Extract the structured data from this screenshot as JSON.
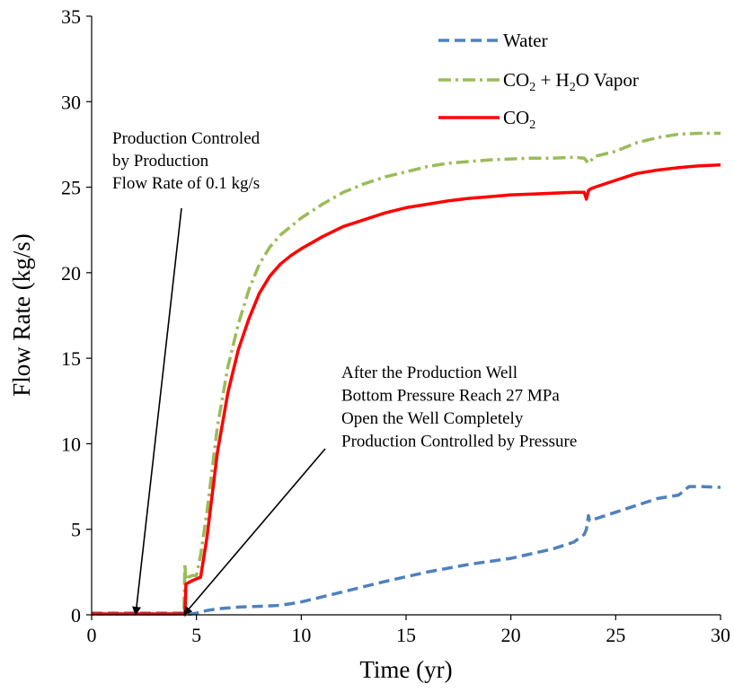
{
  "chart_data": {
    "type": "line",
    "title": "",
    "xlabel": "Time (yr)",
    "ylabel": "Flow Rate (kg/s)",
    "xlim": [
      0,
      30
    ],
    "ylim": [
      0,
      35
    ],
    "x_ticks": [
      "0",
      "5",
      "10",
      "15",
      "20",
      "25",
      "30"
    ],
    "y_ticks": [
      "0",
      "5",
      "10",
      "15",
      "20",
      "25",
      "30",
      "35"
    ],
    "grid": false,
    "legend_position": "top-right",
    "series": [
      {
        "name": "Water",
        "legend_parts": [
          "Water"
        ],
        "color": "#4F81BD",
        "style": "dashed",
        "x": [
          0,
          4.4,
          4.5,
          5,
          5.5,
          6,
          7,
          8,
          9,
          10,
          12,
          14,
          16,
          18,
          20,
          22,
          23,
          23.5,
          23.6,
          23.7,
          23.75,
          24,
          25,
          26,
          27,
          28,
          28.5,
          29,
          30
        ],
        "y": [
          0.1,
          0.1,
          0,
          0.1,
          0.25,
          0.35,
          0.45,
          0.5,
          0.55,
          0.75,
          1.35,
          1.95,
          2.5,
          2.95,
          3.3,
          3.85,
          4.25,
          4.7,
          5.0,
          5.8,
          5.5,
          5.6,
          6.0,
          6.4,
          6.8,
          7.0,
          7.5,
          7.5,
          7.45
        ]
      },
      {
        "name": "CO2 + H2O Vapor",
        "legend_parts": [
          "CO",
          "2",
          " + H",
          "2",
          "O Vapor"
        ],
        "color": "#9BBB59",
        "style": "dashdot",
        "x": [
          0,
          4.4,
          4.45,
          4.5,
          4.6,
          4.8,
          5,
          5.2,
          5.5,
          6,
          6.5,
          7,
          7.5,
          8,
          8.5,
          9,
          9.5,
          10,
          11,
          12,
          13,
          14,
          15,
          16,
          17,
          18,
          19,
          20,
          21,
          22,
          23,
          23.5,
          23.7,
          24,
          25,
          26,
          27,
          28,
          29,
          30
        ],
        "y": [
          0.05,
          0.05,
          3.0,
          1.8,
          2.2,
          2.3,
          2.3,
          3.5,
          6.0,
          11.0,
          14.5,
          17.0,
          19.0,
          20.5,
          21.5,
          22.2,
          22.7,
          23.2,
          24.0,
          24.7,
          25.2,
          25.6,
          25.9,
          26.2,
          26.4,
          26.5,
          26.6,
          26.65,
          26.7,
          26.7,
          26.75,
          26.7,
          26.4,
          26.8,
          27.1,
          27.6,
          27.9,
          28.1,
          28.15,
          28.15
        ]
      },
      {
        "name": "CO2",
        "legend_parts": [
          "CO",
          "2"
        ],
        "color": "#FF0000",
        "style": "solid",
        "x": [
          0,
          4.4,
          4.45,
          4.5,
          4.8,
          5,
          5.2,
          5.5,
          6,
          6.5,
          7,
          7.5,
          8,
          8.5,
          9,
          9.5,
          10,
          11,
          12,
          13,
          14,
          15,
          16,
          17,
          18,
          19,
          20,
          21,
          22,
          23,
          23.5,
          23.6,
          23.7,
          23.8,
          24,
          25,
          25.5,
          26,
          27,
          28,
          29,
          30
        ],
        "y": [
          0.05,
          0.05,
          0,
          1.8,
          2.0,
          2.1,
          2.2,
          4.5,
          9.5,
          13.0,
          15.5,
          17.3,
          18.8,
          19.8,
          20.5,
          21.0,
          21.4,
          22.1,
          22.7,
          23.1,
          23.5,
          23.8,
          24.0,
          24.2,
          24.35,
          24.45,
          24.55,
          24.6,
          24.65,
          24.7,
          24.7,
          24.3,
          24.8,
          24.9,
          25.0,
          25.4,
          25.6,
          25.8,
          26.0,
          26.15,
          26.25,
          26.3
        ]
      }
    ],
    "annotations": [
      {
        "lines": [
          "Production Controled",
          "by Production",
          "Flow Rate of 0.1 kg/s"
        ],
        "arrow_to": [
          2.1,
          0
        ]
      },
      {
        "lines": [
          "After the Production Well",
          "Bottom Pressure Reach 27 MPa",
          "Open the Well Completely",
          "Production Controlled by Pressure"
        ],
        "arrow_to": [
          4.4,
          0
        ]
      }
    ]
  }
}
